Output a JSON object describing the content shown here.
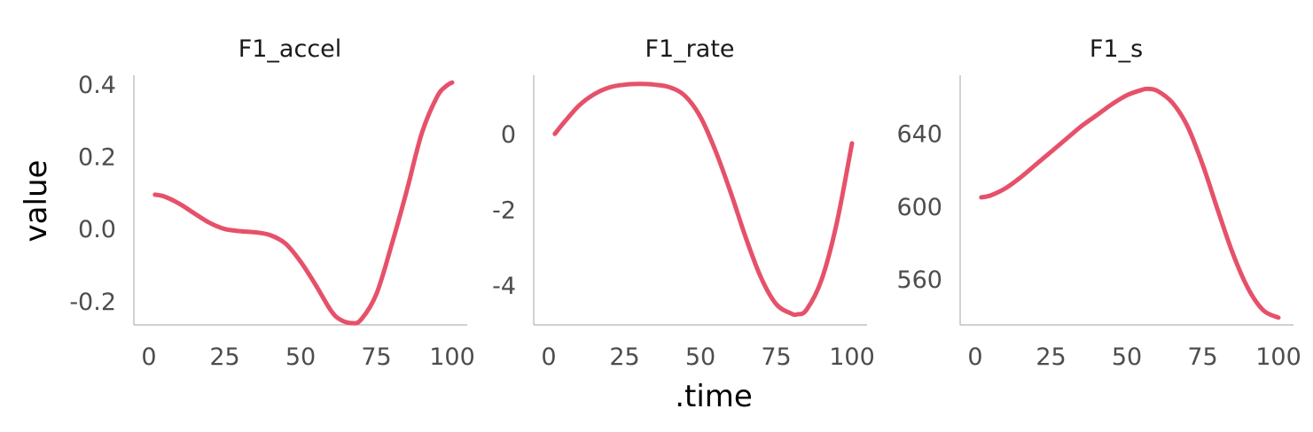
{
  "figure": {
    "ylabel": "value",
    "xlabel": ".time",
    "line_color": "#e6516a"
  },
  "chart_data": [
    {
      "type": "line",
      "title": "F1_accel",
      "xlabel": ".time",
      "ylabel": "value",
      "xlim": [
        0,
        100
      ],
      "ylim": [
        -0.26,
        0.43
      ],
      "xticks": [
        0,
        25,
        50,
        75,
        100
      ],
      "xtick_labels": [
        "0",
        "25",
        "50",
        "75",
        "100"
      ],
      "yticks": [
        -0.2,
        0.0,
        0.2,
        0.4
      ],
      "ytick_labels": [
        "-0.2",
        "0.0",
        "0.2",
        "0.4"
      ],
      "grid": false,
      "series": [
        {
          "x": [
            2,
            5,
            10,
            15,
            20,
            25,
            30,
            35,
            40,
            45,
            50,
            55,
            60,
            63,
            67,
            70,
            75,
            80,
            85,
            90,
            95,
            98,
            100
          ],
          "y": [
            0.1,
            0.095,
            0.075,
            0.048,
            0.022,
            0.005,
            -0.001,
            -0.004,
            -0.012,
            -0.035,
            -0.085,
            -0.15,
            -0.22,
            -0.245,
            -0.255,
            -0.245,
            -0.175,
            -0.04,
            0.11,
            0.27,
            0.37,
            0.4,
            0.41
          ]
        }
      ]
    },
    {
      "type": "line",
      "title": "F1_rate",
      "xlabel": ".time",
      "ylabel": "value",
      "xlim": [
        0,
        100
      ],
      "ylim": [
        -5.0,
        1.6
      ],
      "xticks": [
        0,
        25,
        50,
        75,
        100
      ],
      "xtick_labels": [
        "0",
        "25",
        "50",
        "75",
        "100"
      ],
      "yticks": [
        -4,
        -2,
        0
      ],
      "ytick_labels": [
        "-4",
        "-2",
        "0"
      ],
      "grid": false,
      "series": [
        {
          "x": [
            2,
            5,
            10,
            15,
            20,
            25,
            30,
            35,
            40,
            45,
            50,
            55,
            60,
            65,
            70,
            75,
            80,
            82,
            85,
            90,
            95,
            100
          ],
          "y": [
            0.05,
            0.35,
            0.8,
            1.1,
            1.28,
            1.35,
            1.37,
            1.35,
            1.28,
            1.05,
            0.5,
            -0.4,
            -1.5,
            -2.7,
            -3.75,
            -4.45,
            -4.7,
            -4.72,
            -4.6,
            -3.8,
            -2.3,
            -0.2
          ]
        }
      ]
    },
    {
      "type": "line",
      "title": "F1_s",
      "xlabel": ".time",
      "ylabel": "value",
      "xlim": [
        0,
        100
      ],
      "ylim": [
        536,
        673
      ],
      "xticks": [
        0,
        25,
        50,
        75,
        100
      ],
      "xtick_labels": [
        "0",
        "25",
        "50",
        "75",
        "100"
      ],
      "yticks": [
        560,
        600,
        640
      ],
      "ytick_labels": [
        "560",
        "600",
        "640"
      ],
      "grid": false,
      "series": [
        {
          "x": [
            2,
            5,
            10,
            15,
            20,
            25,
            30,
            35,
            40,
            45,
            50,
            55,
            57,
            60,
            65,
            70,
            75,
            80,
            85,
            90,
            95,
            100
          ],
          "y": [
            606,
            607,
            611,
            617,
            624,
            631,
            638,
            645,
            651,
            657,
            662,
            665,
            665.5,
            664.5,
            658,
            645,
            624,
            599,
            575,
            556,
            544,
            540
          ]
        }
      ]
    }
  ]
}
